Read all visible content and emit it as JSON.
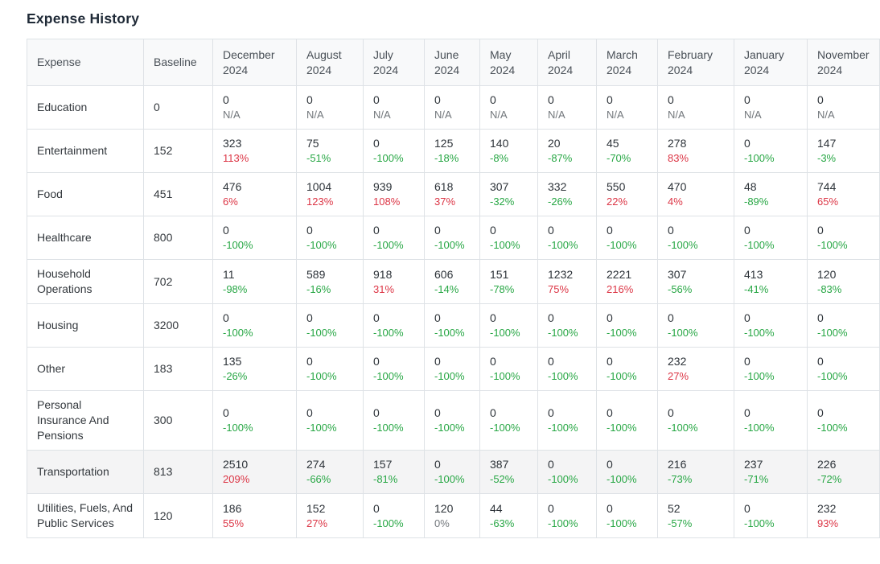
{
  "page": {
    "title": "Expense History"
  },
  "colors": {
    "positive_change": "#dc3545",
    "negative_change": "#28a745",
    "neutral_change": "#72777c",
    "header_background": "#f8f9fa",
    "highlight_row_background": "#f4f4f5",
    "border": "#dee2e6"
  },
  "table": {
    "columns": [
      "Expense",
      "Baseline",
      "December 2024",
      "August 2024",
      "July 2024",
      "June 2024",
      "May 2024",
      "April 2024",
      "March 2024",
      "February 2024",
      "January 2024",
      "November 2024"
    ],
    "rows": [
      {
        "expense": "Education",
        "baseline": "0",
        "highlight": false,
        "cells": [
          {
            "v": "0",
            "p": "N/A"
          },
          {
            "v": "0",
            "p": "N/A"
          },
          {
            "v": "0",
            "p": "N/A"
          },
          {
            "v": "0",
            "p": "N/A"
          },
          {
            "v": "0",
            "p": "N/A"
          },
          {
            "v": "0",
            "p": "N/A"
          },
          {
            "v": "0",
            "p": "N/A"
          },
          {
            "v": "0",
            "p": "N/A"
          },
          {
            "v": "0",
            "p": "N/A"
          },
          {
            "v": "0",
            "p": "N/A"
          }
        ]
      },
      {
        "expense": "Entertainment",
        "baseline": "152",
        "highlight": false,
        "cells": [
          {
            "v": "323",
            "p": "113%"
          },
          {
            "v": "75",
            "p": "-51%"
          },
          {
            "v": "0",
            "p": "-100%"
          },
          {
            "v": "125",
            "p": "-18%"
          },
          {
            "v": "140",
            "p": "-8%"
          },
          {
            "v": "20",
            "p": "-87%"
          },
          {
            "v": "45",
            "p": "-70%"
          },
          {
            "v": "278",
            "p": "83%"
          },
          {
            "v": "0",
            "p": "-100%"
          },
          {
            "v": "147",
            "p": "-3%"
          }
        ]
      },
      {
        "expense": "Food",
        "baseline": "451",
        "highlight": false,
        "cells": [
          {
            "v": "476",
            "p": "6%"
          },
          {
            "v": "1004",
            "p": "123%"
          },
          {
            "v": "939",
            "p": "108%"
          },
          {
            "v": "618",
            "p": "37%"
          },
          {
            "v": "307",
            "p": "-32%"
          },
          {
            "v": "332",
            "p": "-26%"
          },
          {
            "v": "550",
            "p": "22%"
          },
          {
            "v": "470",
            "p": "4%"
          },
          {
            "v": "48",
            "p": "-89%"
          },
          {
            "v": "744",
            "p": "65%"
          }
        ]
      },
      {
        "expense": "Healthcare",
        "baseline": "800",
        "highlight": false,
        "cells": [
          {
            "v": "0",
            "p": "-100%"
          },
          {
            "v": "0",
            "p": "-100%"
          },
          {
            "v": "0",
            "p": "-100%"
          },
          {
            "v": "0",
            "p": "-100%"
          },
          {
            "v": "0",
            "p": "-100%"
          },
          {
            "v": "0",
            "p": "-100%"
          },
          {
            "v": "0",
            "p": "-100%"
          },
          {
            "v": "0",
            "p": "-100%"
          },
          {
            "v": "0",
            "p": "-100%"
          },
          {
            "v": "0",
            "p": "-100%"
          }
        ]
      },
      {
        "expense": "Household Operations",
        "baseline": "702",
        "highlight": false,
        "cells": [
          {
            "v": "11",
            "p": "-98%"
          },
          {
            "v": "589",
            "p": "-16%"
          },
          {
            "v": "918",
            "p": "31%"
          },
          {
            "v": "606",
            "p": "-14%"
          },
          {
            "v": "151",
            "p": "-78%"
          },
          {
            "v": "1232",
            "p": "75%"
          },
          {
            "v": "2221",
            "p": "216%"
          },
          {
            "v": "307",
            "p": "-56%"
          },
          {
            "v": "413",
            "p": "-41%"
          },
          {
            "v": "120",
            "p": "-83%"
          }
        ]
      },
      {
        "expense": "Housing",
        "baseline": "3200",
        "highlight": false,
        "cells": [
          {
            "v": "0",
            "p": "-100%"
          },
          {
            "v": "0",
            "p": "-100%"
          },
          {
            "v": "0",
            "p": "-100%"
          },
          {
            "v": "0",
            "p": "-100%"
          },
          {
            "v": "0",
            "p": "-100%"
          },
          {
            "v": "0",
            "p": "-100%"
          },
          {
            "v": "0",
            "p": "-100%"
          },
          {
            "v": "0",
            "p": "-100%"
          },
          {
            "v": "0",
            "p": "-100%"
          },
          {
            "v": "0",
            "p": "-100%"
          }
        ]
      },
      {
        "expense": "Other",
        "baseline": "183",
        "highlight": false,
        "cells": [
          {
            "v": "135",
            "p": "-26%"
          },
          {
            "v": "0",
            "p": "-100%"
          },
          {
            "v": "0",
            "p": "-100%"
          },
          {
            "v": "0",
            "p": "-100%"
          },
          {
            "v": "0",
            "p": "-100%"
          },
          {
            "v": "0",
            "p": "-100%"
          },
          {
            "v": "0",
            "p": "-100%"
          },
          {
            "v": "232",
            "p": "27%"
          },
          {
            "v": "0",
            "p": "-100%"
          },
          {
            "v": "0",
            "p": "-100%"
          }
        ]
      },
      {
        "expense": "Personal Insurance And Pensions",
        "baseline": "300",
        "highlight": false,
        "cells": [
          {
            "v": "0",
            "p": "-100%"
          },
          {
            "v": "0",
            "p": "-100%"
          },
          {
            "v": "0",
            "p": "-100%"
          },
          {
            "v": "0",
            "p": "-100%"
          },
          {
            "v": "0",
            "p": "-100%"
          },
          {
            "v": "0",
            "p": "-100%"
          },
          {
            "v": "0",
            "p": "-100%"
          },
          {
            "v": "0",
            "p": "-100%"
          },
          {
            "v": "0",
            "p": "-100%"
          },
          {
            "v": "0",
            "p": "-100%"
          }
        ]
      },
      {
        "expense": "Transportation",
        "baseline": "813",
        "highlight": true,
        "cells": [
          {
            "v": "2510",
            "p": "209%"
          },
          {
            "v": "274",
            "p": "-66%"
          },
          {
            "v": "157",
            "p": "-81%"
          },
          {
            "v": "0",
            "p": "-100%"
          },
          {
            "v": "387",
            "p": "-52%"
          },
          {
            "v": "0",
            "p": "-100%"
          },
          {
            "v": "0",
            "p": "-100%"
          },
          {
            "v": "216",
            "p": "-73%"
          },
          {
            "v": "237",
            "p": "-71%"
          },
          {
            "v": "226",
            "p": "-72%"
          }
        ]
      },
      {
        "expense": "Utilities, Fuels, And Public Services",
        "baseline": "120",
        "highlight": false,
        "cells": [
          {
            "v": "186",
            "p": "55%"
          },
          {
            "v": "152",
            "p": "27%"
          },
          {
            "v": "0",
            "p": "-100%"
          },
          {
            "v": "120",
            "p": "0%"
          },
          {
            "v": "44",
            "p": "-63%"
          },
          {
            "v": "0",
            "p": "-100%"
          },
          {
            "v": "0",
            "p": "-100%"
          },
          {
            "v": "52",
            "p": "-57%"
          },
          {
            "v": "0",
            "p": "-100%"
          },
          {
            "v": "232",
            "p": "93%"
          }
        ]
      }
    ]
  }
}
